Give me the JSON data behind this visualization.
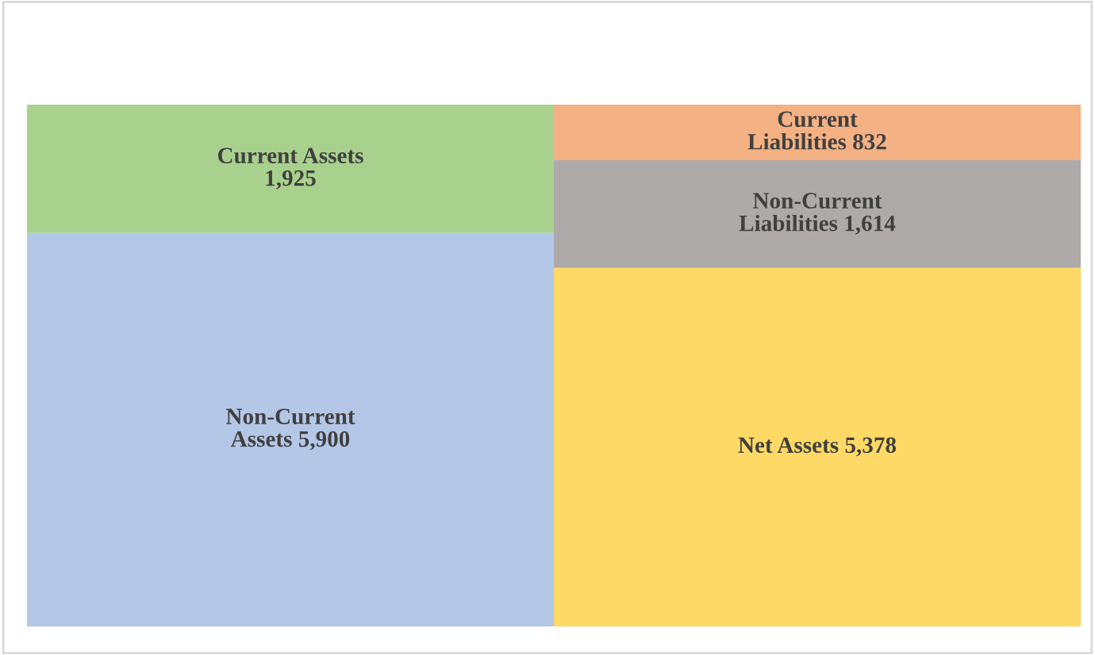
{
  "chart_data": {
    "type": "bar",
    "stacked": true,
    "categories": [
      null,
      null
    ],
    "series": [
      {
        "color": "#b4c7e7",
        "values": [
          5900,
          null
        ],
        "value_labels": [
          "Non-Current\nAssets 5,900",
          null
        ]
      },
      {
        "color": "#a9d18e",
        "values": [
          1925,
          null
        ],
        "value_labels": [
          "Current Assets\n1,925",
          null
        ]
      },
      {
        "color": "#ffd966",
        "values": [
          null,
          5378
        ],
        "value_labels": [
          null,
          "Net Assets 5,378"
        ]
      },
      {
        "color": "#aeaaaa",
        "values": [
          null,
          1614
        ],
        "value_labels": [
          null,
          "Non-Current\nLiabilities 1,614"
        ]
      },
      {
        "color": "#f4b183",
        "values": [
          null,
          832
        ],
        "value_labels": [
          null,
          "Current\nLiabilities 832"
        ]
      }
    ],
    "grid": false,
    "legend": false,
    "tick_labels": false
  }
}
